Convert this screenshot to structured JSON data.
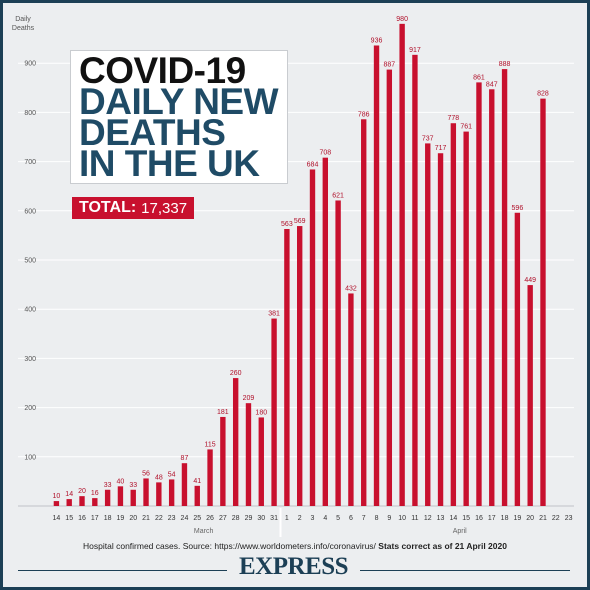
{
  "title_lines": [
    "COVID-19",
    "DAILY NEW",
    "DEATHS",
    "IN THE UK"
  ],
  "total": {
    "label": "TOTAL:",
    "value": "17,337"
  },
  "footnote": {
    "source": "Hospital confirmed cases. Source: https://www.worldometers.info/coronavirus/",
    "stats": "Stats correct as of 21 April 2020"
  },
  "brand": "EXPRESS",
  "colors": {
    "bar": "#c8102e",
    "background": "#eceef0",
    "border": "#1c3f55",
    "title_dark": "#1f4b66"
  },
  "chart_data": {
    "type": "bar",
    "ylabel": "Daily Deaths",
    "ylim": [
      0,
      1000
    ],
    "yticks": [
      100,
      200,
      300,
      400,
      500,
      600,
      700,
      800,
      900
    ],
    "grid": true,
    "categories": [
      "14",
      "15",
      "16",
      "17",
      "18",
      "19",
      "20",
      "21",
      "22",
      "23",
      "24",
      "25",
      "26",
      "27",
      "28",
      "29",
      "30",
      "31",
      "1",
      "2",
      "3",
      "4",
      "5",
      "6",
      "7",
      "8",
      "9",
      "10",
      "11",
      "12",
      "13",
      "14",
      "15",
      "16",
      "17",
      "18",
      "19",
      "20",
      "21",
      "22",
      "23"
    ],
    "values": [
      10,
      14,
      20,
      16,
      33,
      40,
      33,
      56,
      48,
      54,
      87,
      41,
      115,
      181,
      260,
      209,
      180,
      381,
      563,
      569,
      684,
      708,
      621,
      432,
      786,
      936,
      887,
      980,
      917,
      737,
      717,
      778,
      761,
      861,
      847,
      888,
      596,
      449,
      828,
      null,
      null
    ],
    "month_labels": [
      {
        "label": "March",
        "center_index": 11.5
      },
      {
        "label": "April",
        "center_index": 31.5
      }
    ]
  }
}
